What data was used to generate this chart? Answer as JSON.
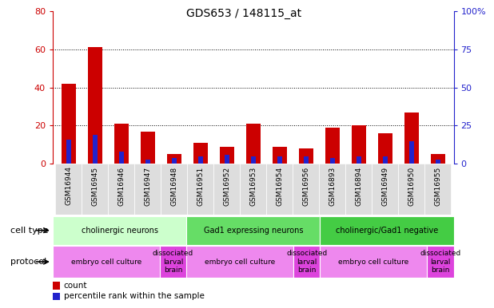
{
  "title": "GDS653 / 148115_at",
  "samples": [
    "GSM16944",
    "GSM16945",
    "GSM16946",
    "GSM16947",
    "GSM16948",
    "GSM16951",
    "GSM16952",
    "GSM16953",
    "GSM16954",
    "GSM16956",
    "GSM16893",
    "GSM16894",
    "GSM16949",
    "GSM16950",
    "GSM16955"
  ],
  "count": [
    42,
    61,
    21,
    17,
    5,
    11,
    9,
    21,
    9,
    8,
    19,
    20,
    16,
    27,
    5
  ],
  "percentile": [
    16,
    19,
    8,
    3,
    4,
    5,
    6,
    5,
    5,
    5,
    4,
    5,
    5,
    15,
    3
  ],
  "ylim_left": [
    0,
    80
  ],
  "ylim_right": [
    0,
    100
  ],
  "yticks_left": [
    0,
    20,
    40,
    60,
    80
  ],
  "yticks_right": [
    0,
    25,
    50,
    75,
    100
  ],
  "ytick_labels_right": [
    "0",
    "25",
    "50",
    "75",
    "100%"
  ],
  "red_color": "#cc0000",
  "blue_color": "#2222cc",
  "cell_type_groups": [
    {
      "label": "cholinergic neurons",
      "start": 0,
      "end": 4,
      "color": "#ccffcc"
    },
    {
      "label": "Gad1 expressing neurons",
      "start": 5,
      "end": 9,
      "color": "#66dd66"
    },
    {
      "label": "cholinergic/Gad1 negative",
      "start": 10,
      "end": 14,
      "color": "#44cc44"
    }
  ],
  "protocol_groups": [
    {
      "label": "embryo cell culture",
      "start": 0,
      "end": 3,
      "color": "#ee88ee"
    },
    {
      "label": "dissociated\nlarval\nbrain",
      "start": 4,
      "end": 4,
      "color": "#dd44dd"
    },
    {
      "label": "embryo cell culture",
      "start": 5,
      "end": 8,
      "color": "#ee88ee"
    },
    {
      "label": "dissociated\nlarval\nbrain",
      "start": 9,
      "end": 9,
      "color": "#dd44dd"
    },
    {
      "label": "embryo cell culture",
      "start": 10,
      "end": 13,
      "color": "#ee88ee"
    },
    {
      "label": "dissociated\nlarval\nbrain",
      "start": 14,
      "end": 14,
      "color": "#dd44dd"
    }
  ]
}
